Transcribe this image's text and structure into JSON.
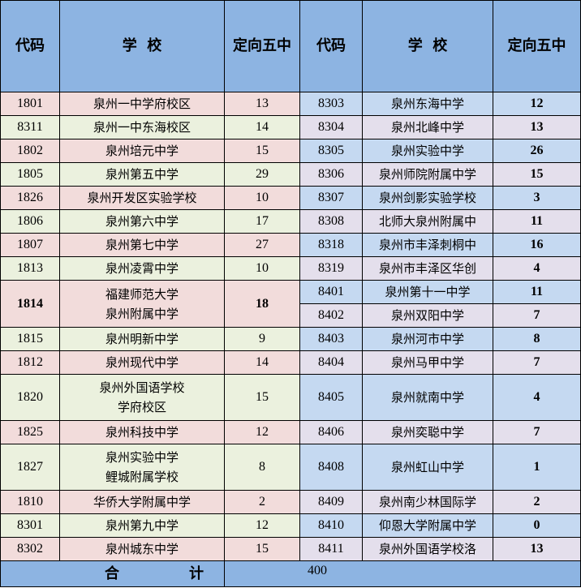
{
  "headers": [
    "代码",
    "学  校",
    "定向五中",
    "代码",
    "学  校",
    "定向五中"
  ],
  "left_rows": [
    {
      "code": "1801",
      "school": [
        "泉州一中学府校区"
      ],
      "count": "13"
    },
    {
      "code": "8311",
      "school": [
        "泉州一中东海校区"
      ],
      "count": "14"
    },
    {
      "code": "1802",
      "school": [
        "泉州培元中学"
      ],
      "count": "15"
    },
    {
      "code": "1805",
      "school": [
        "泉州第五中学"
      ],
      "count": "29"
    },
    {
      "code": "1826",
      "school": [
        "泉州开发区实验学校"
      ],
      "count": "10"
    },
    {
      "code": "1806",
      "school": [
        "泉州第六中学"
      ],
      "count": "17"
    },
    {
      "code": "1807",
      "school": [
        "泉州第七中学"
      ],
      "count": "27"
    },
    {
      "code": "1813",
      "school": [
        "泉州凌霄中学"
      ],
      "count": "10"
    },
    {
      "code": "1814",
      "school": [
        "福建师范大学",
        "泉州附属中学"
      ],
      "count": "18"
    },
    {
      "code": "1815",
      "school": [
        "泉州明新中学"
      ],
      "count": "9"
    },
    {
      "code": "1812",
      "school": [
        "泉州现代中学"
      ],
      "count": "14"
    },
    {
      "code": "1820",
      "school": [
        "泉州外国语学校",
        "学府校区"
      ],
      "count": "15"
    },
    {
      "code": "1825",
      "school": [
        "泉州科技中学"
      ],
      "count": "12"
    },
    {
      "code": "1827",
      "school": [
        "泉州实验中学",
        "鲤城附属学校"
      ],
      "count": "8"
    },
    {
      "code": "1810",
      "school": [
        "华侨大学附属中学"
      ],
      "count": "2"
    },
    {
      "code": "8301",
      "school": [
        "泉州第九中学"
      ],
      "count": "12"
    },
    {
      "code": "8302",
      "school": [
        "泉州城东中学"
      ],
      "count": "15"
    }
  ],
  "right_rows": [
    {
      "code": "8303",
      "school": "泉州东海中学",
      "count": "12"
    },
    {
      "code": "8304",
      "school": "泉州北峰中学",
      "count": "13"
    },
    {
      "code": "8305",
      "school": "泉州实验中学",
      "count": "26"
    },
    {
      "code": "8306",
      "school": "泉州师院附属中学",
      "count": "15"
    },
    {
      "code": "8307",
      "school": "泉州剑影实验学校",
      "count": "3"
    },
    {
      "code": "8308",
      "school": "北师大泉州附属中",
      "count": "11"
    },
    {
      "code": "8318",
      "school": "泉州市丰泽刺桐中",
      "count": "16"
    },
    {
      "code": "8319",
      "school": "泉州市丰泽区华创",
      "count": "4"
    },
    {
      "code": "8401",
      "school": "泉州第十一中学",
      "count": "11"
    },
    {
      "code": "8402",
      "school": "泉州双阳中学",
      "count": "7"
    },
    {
      "code": "8403",
      "school": "泉州河市中学",
      "count": "8"
    },
    {
      "code": "8404",
      "school": "泉州马甲中学",
      "count": "7"
    },
    {
      "code": "8405",
      "school": "泉州就南中学",
      "count": "4"
    },
    {
      "code": "8406",
      "school": "泉州奕聪中学",
      "count": "7"
    },
    {
      "code": "8408",
      "school": "泉州虹山中学",
      "count": "1"
    },
    {
      "code": "8409",
      "school": "泉州南少林国际学",
      "count": "2"
    },
    {
      "code": "8410",
      "school": "仰恩大学附属中学",
      "count": "0"
    },
    {
      "code": "8411",
      "school": "泉州外国语学校洛",
      "count": "13"
    }
  ],
  "footer": {
    "label_1": "合",
    "label_2": "计",
    "total": "400"
  },
  "colors": {
    "header": "#8db4e2",
    "pink": "#f2dcdb",
    "green": "#ebf1de",
    "blue": "#c5d9f1",
    "lavender": "#e4dfec"
  }
}
